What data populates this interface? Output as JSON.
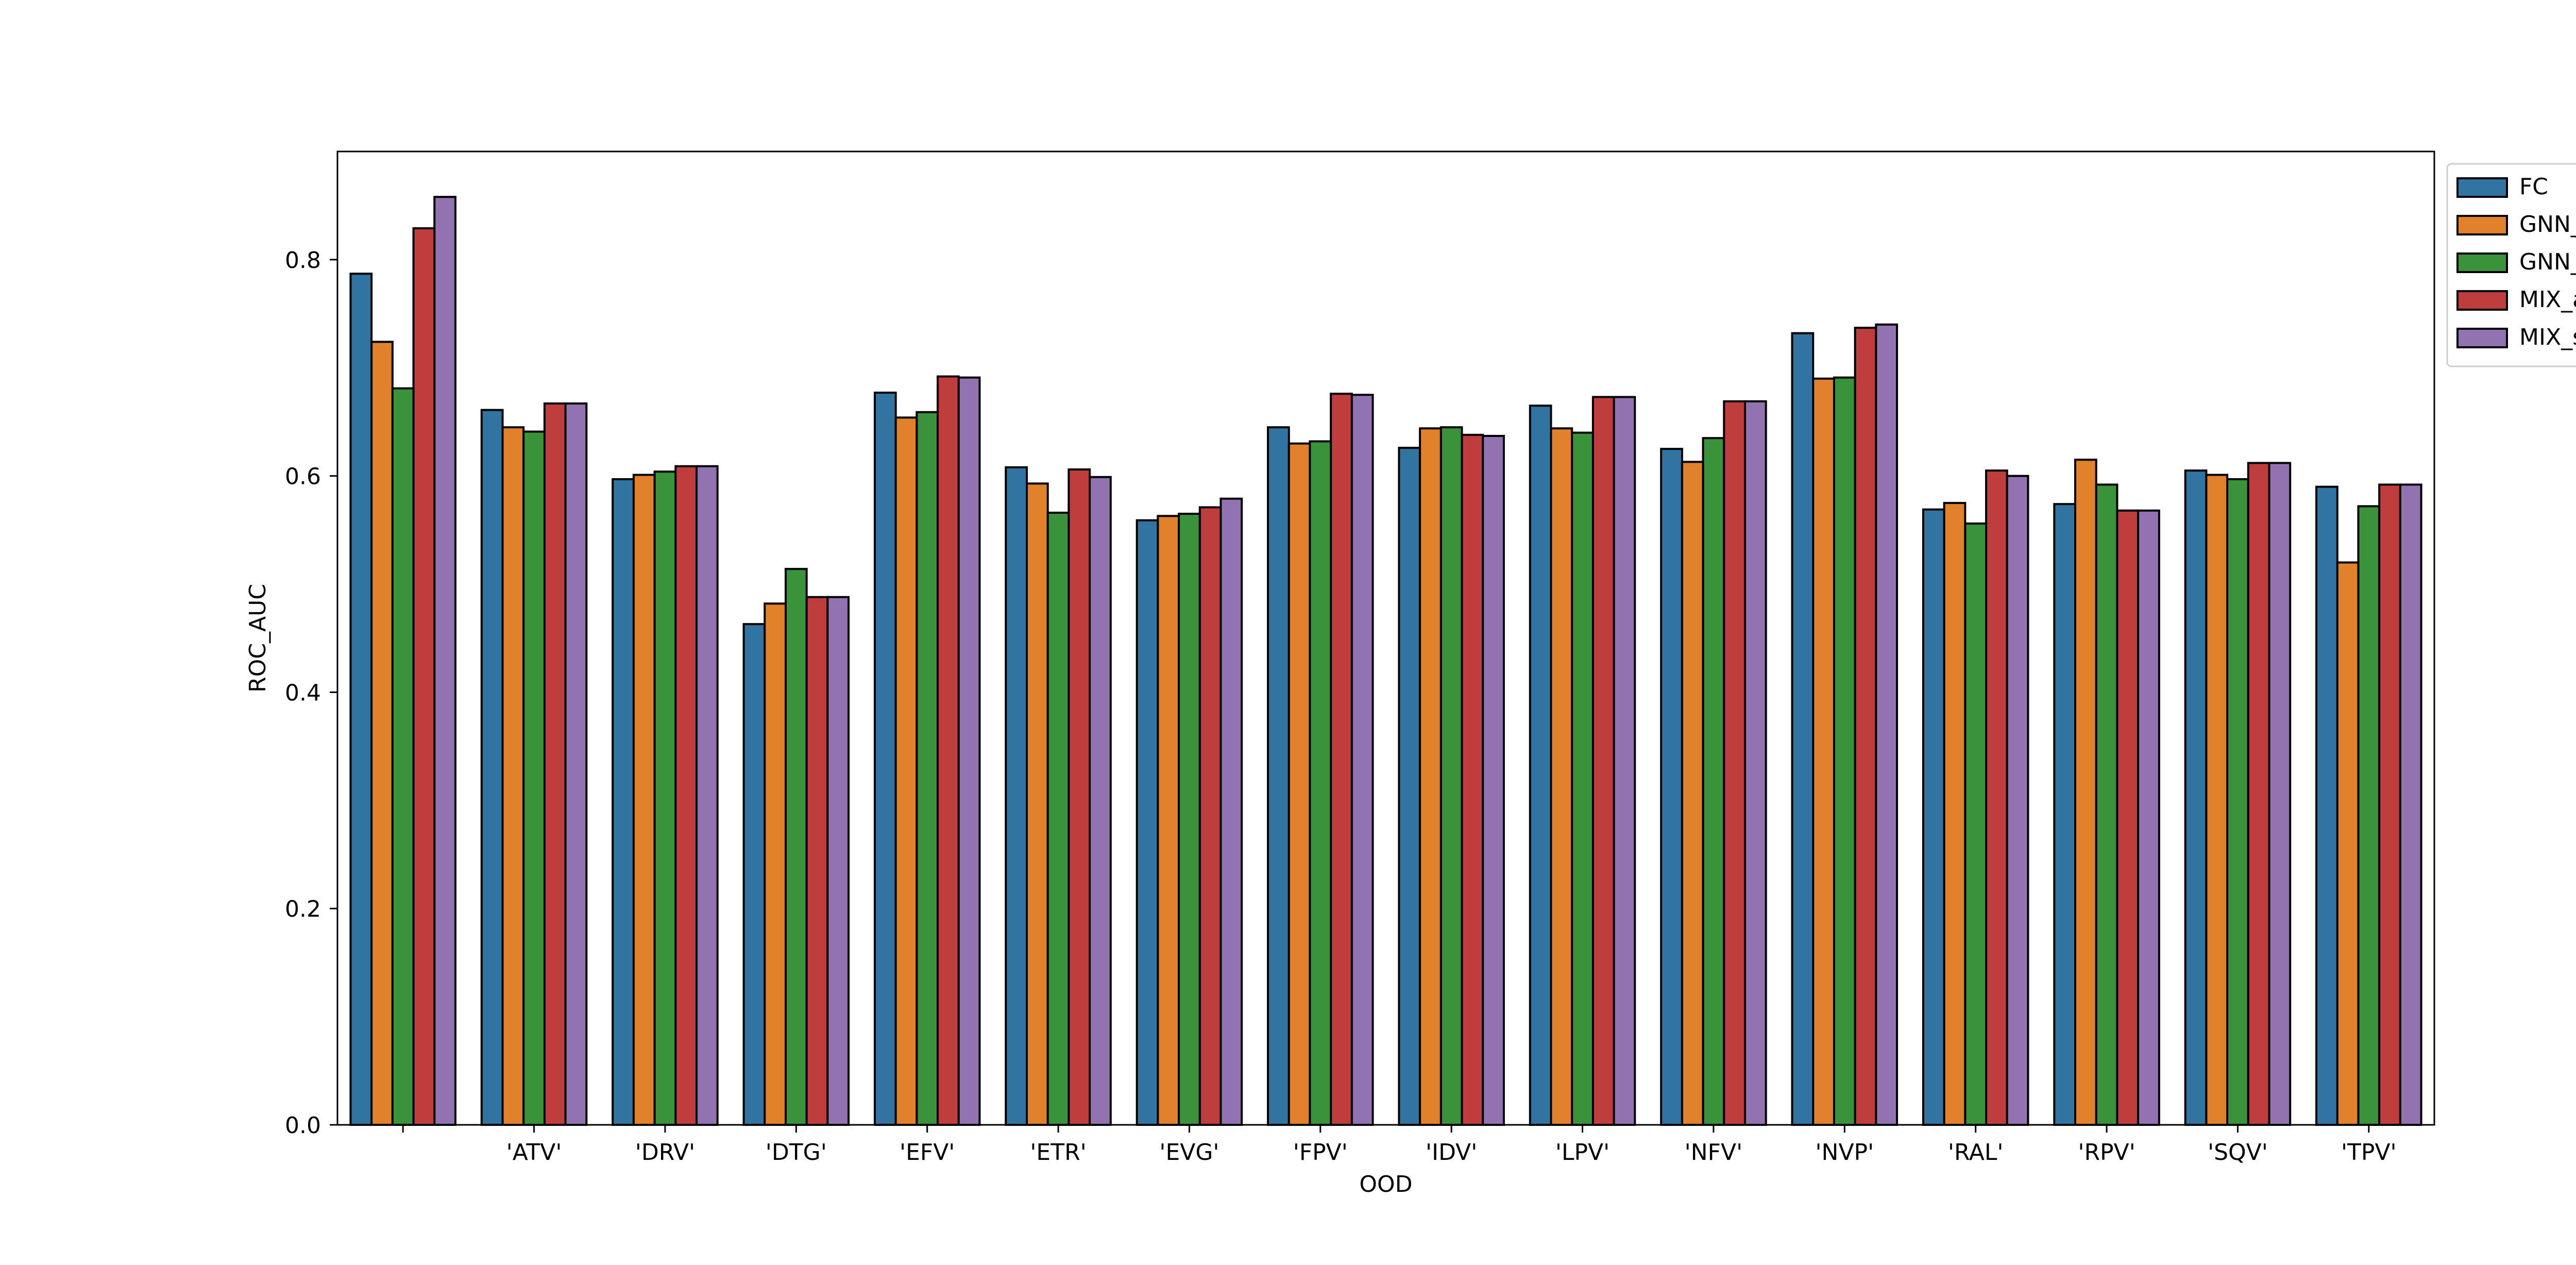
{
  "chart_data": {
    "type": "bar",
    "title": "",
    "xlabel": "OOD",
    "ylabel": "ROC_AUC",
    "ylim": [
      0.0,
      0.9
    ],
    "yticks": [
      "0.0",
      "0.2",
      "0.4",
      "0.6",
      "0.8"
    ],
    "ytick_values": [
      0.0,
      0.2,
      0.4,
      0.6,
      0.8
    ],
    "grid": false,
    "legend_position": "outside right, top",
    "categories": [
      "",
      "'ATV'",
      "'DRV'",
      "'DTG'",
      "'EFV'",
      "'ETR'",
      "'EVG'",
      "'FPV'",
      "'IDV'",
      "'LPV'",
      "'NFV'",
      "'NVP'",
      "'RAL'",
      "'RPV'",
      "'SQV'",
      "'TPV'"
    ],
    "series": [
      {
        "name": "FC",
        "color": "#3274a1",
        "values": [
          0.787,
          0.661,
          0.597,
          0.463,
          0.677,
          0.608,
          0.559,
          0.645,
          0.626,
          0.665,
          0.625,
          0.732,
          0.569,
          0.574,
          0.605,
          0.59
        ]
      },
      {
        "name": "GNN_all",
        "color": "#e1812c",
        "values": [
          0.724,
          0.645,
          0.601,
          0.482,
          0.654,
          0.593,
          0.563,
          0.63,
          0.644,
          0.644,
          0.613,
          0.69,
          0.575,
          0.615,
          0.601,
          0.52
        ]
      },
      {
        "name": "GNN_subset",
        "color": "#3a923a",
        "values": [
          0.681,
          0.641,
          0.604,
          0.514,
          0.659,
          0.566,
          0.565,
          0.632,
          0.645,
          0.64,
          0.635,
          0.691,
          0.556,
          0.592,
          0.597,
          0.572
        ]
      },
      {
        "name": "MIX_all",
        "color": "#c03d3e",
        "values": [
          0.829,
          0.667,
          0.609,
          0.488,
          0.692,
          0.606,
          0.571,
          0.676,
          0.638,
          0.673,
          0.669,
          0.737,
          0.605,
          0.568,
          0.612,
          0.592
        ]
      },
      {
        "name": "MIX_subset",
        "color": "#9372b2",
        "values": [
          0.858,
          0.667,
          0.609,
          0.488,
          0.691,
          0.599,
          0.579,
          0.675,
          0.637,
          0.673,
          0.669,
          0.74,
          0.6,
          0.568,
          0.612,
          0.592
        ]
      }
    ]
  }
}
